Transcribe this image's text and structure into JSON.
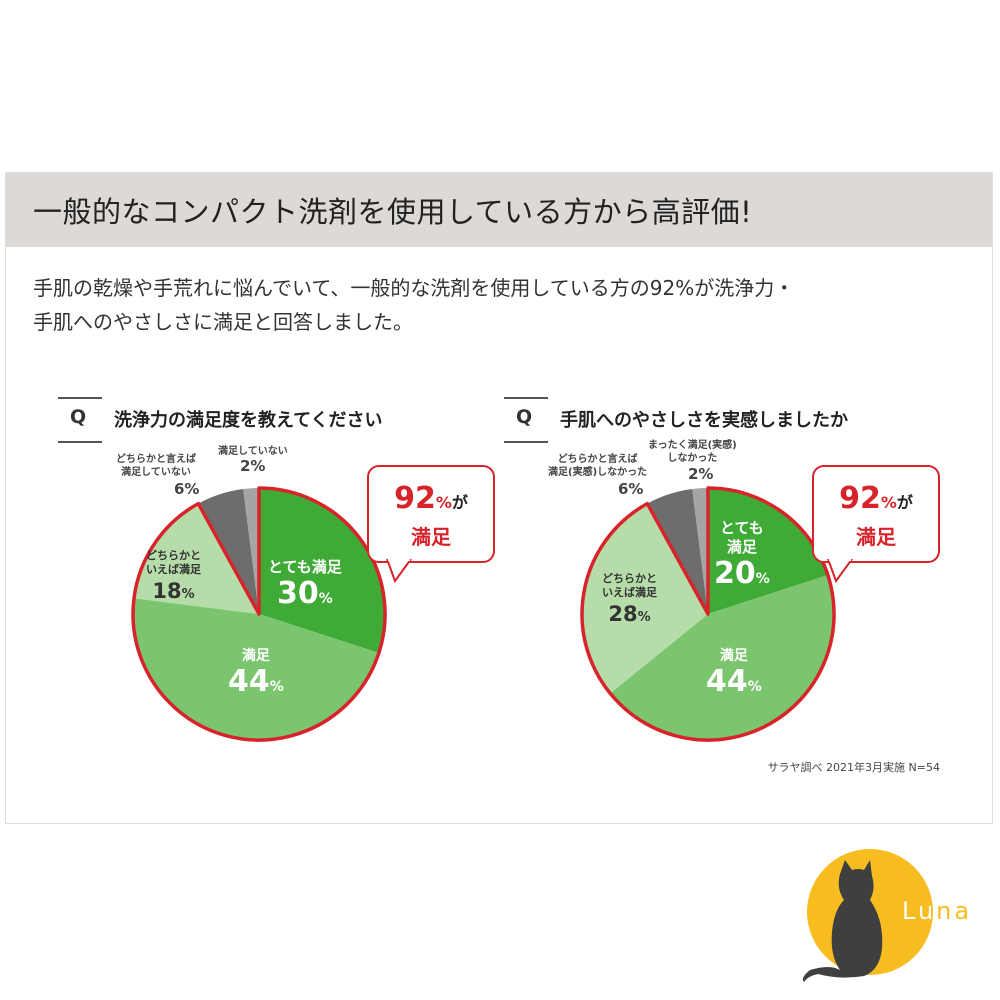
{
  "banner": {
    "title": "一般的なコンパクト洗剤を使用している方から高評価!"
  },
  "description": {
    "line1": "手肌の乾燥や手荒れに悩んでいて、一般的な洗剤を使用している方の92%が洗浄力・",
    "line2": "手肌へのやさしさに満足と回答しました。"
  },
  "charts": [
    {
      "q_letter": "Q",
      "question": "洗浄力の満足度を教えてください",
      "outside_labels": {
        "not_satisfied_text": "満足していない",
        "not_satisfied_pct": "2%",
        "rather_not_text1": "どちらかと言えば",
        "rather_not_text2": "満足していない",
        "rather_not_pct": "6%"
      },
      "slices": {
        "very_label": "とても満足",
        "very_pct": "30",
        "sat_label": "満足",
        "sat_pct": "44",
        "rather_label1": "どちらかと",
        "rather_label2": "いえば満足",
        "rather_pct": "18"
      },
      "bubble": {
        "big": "92",
        "pct": "%",
        "ga": "が",
        "sub": "満足"
      }
    },
    {
      "q_letter": "Q",
      "question": "手肌へのやさしさを実感しましたか",
      "outside_labels": {
        "not_satisfied_text1": "まったく満足(実感)",
        "not_satisfied_text2": "しなかった",
        "not_satisfied_pct": "2%",
        "rather_not_text1": "どちらかと言えば",
        "rather_not_text2": "満足(実感)しなかった",
        "rather_not_pct": "6%"
      },
      "slices": {
        "very_label1": "とても",
        "very_label2": "満足",
        "very_pct": "20",
        "sat_label": "満足",
        "sat_pct": "44",
        "rather_label1": "どちらかと",
        "rather_label2": "いえば満足",
        "rather_pct": "28"
      },
      "bubble": {
        "big": "92",
        "pct": "%",
        "ga": "が",
        "sub": "満足"
      }
    }
  ],
  "pct_sign": "%",
  "source": "サラヤ調べ 2021年3月実施 N=54",
  "logo": {
    "text": "Luna"
  },
  "colors": {
    "banner_bg": "#dcd9d6",
    "very_satisfied": "#3faa35",
    "satisfied": "#7cc56f",
    "rather_satisfied": "#b5dca9",
    "rather_not": "#6d6d6d",
    "not_satisfied": "#a5a5a5",
    "accent_red": "#d8232a",
    "logo_yellow": "#f7bd20",
    "logo_cat": "#3f3f3f"
  },
  "chart_data": [
    {
      "type": "pie",
      "title": "洗浄力の満足度を教えてください",
      "categories": [
        "とても満足",
        "満足",
        "どちらかといえば満足",
        "どちらかと言えば満足していない",
        "満足していない"
      ],
      "values": [
        30,
        44,
        18,
        6,
        2
      ],
      "unit": "%",
      "annotation": "92%が満足"
    },
    {
      "type": "pie",
      "title": "手肌へのやさしさを実感しましたか",
      "categories": [
        "とても満足",
        "満足",
        "どちらかといえば満足",
        "どちらかと言えば満足(実感)しなかった",
        "まったく満足(実感)しなかった"
      ],
      "values": [
        20,
        44,
        28,
        6,
        2
      ],
      "unit": "%",
      "annotation": "92%が満足"
    }
  ]
}
